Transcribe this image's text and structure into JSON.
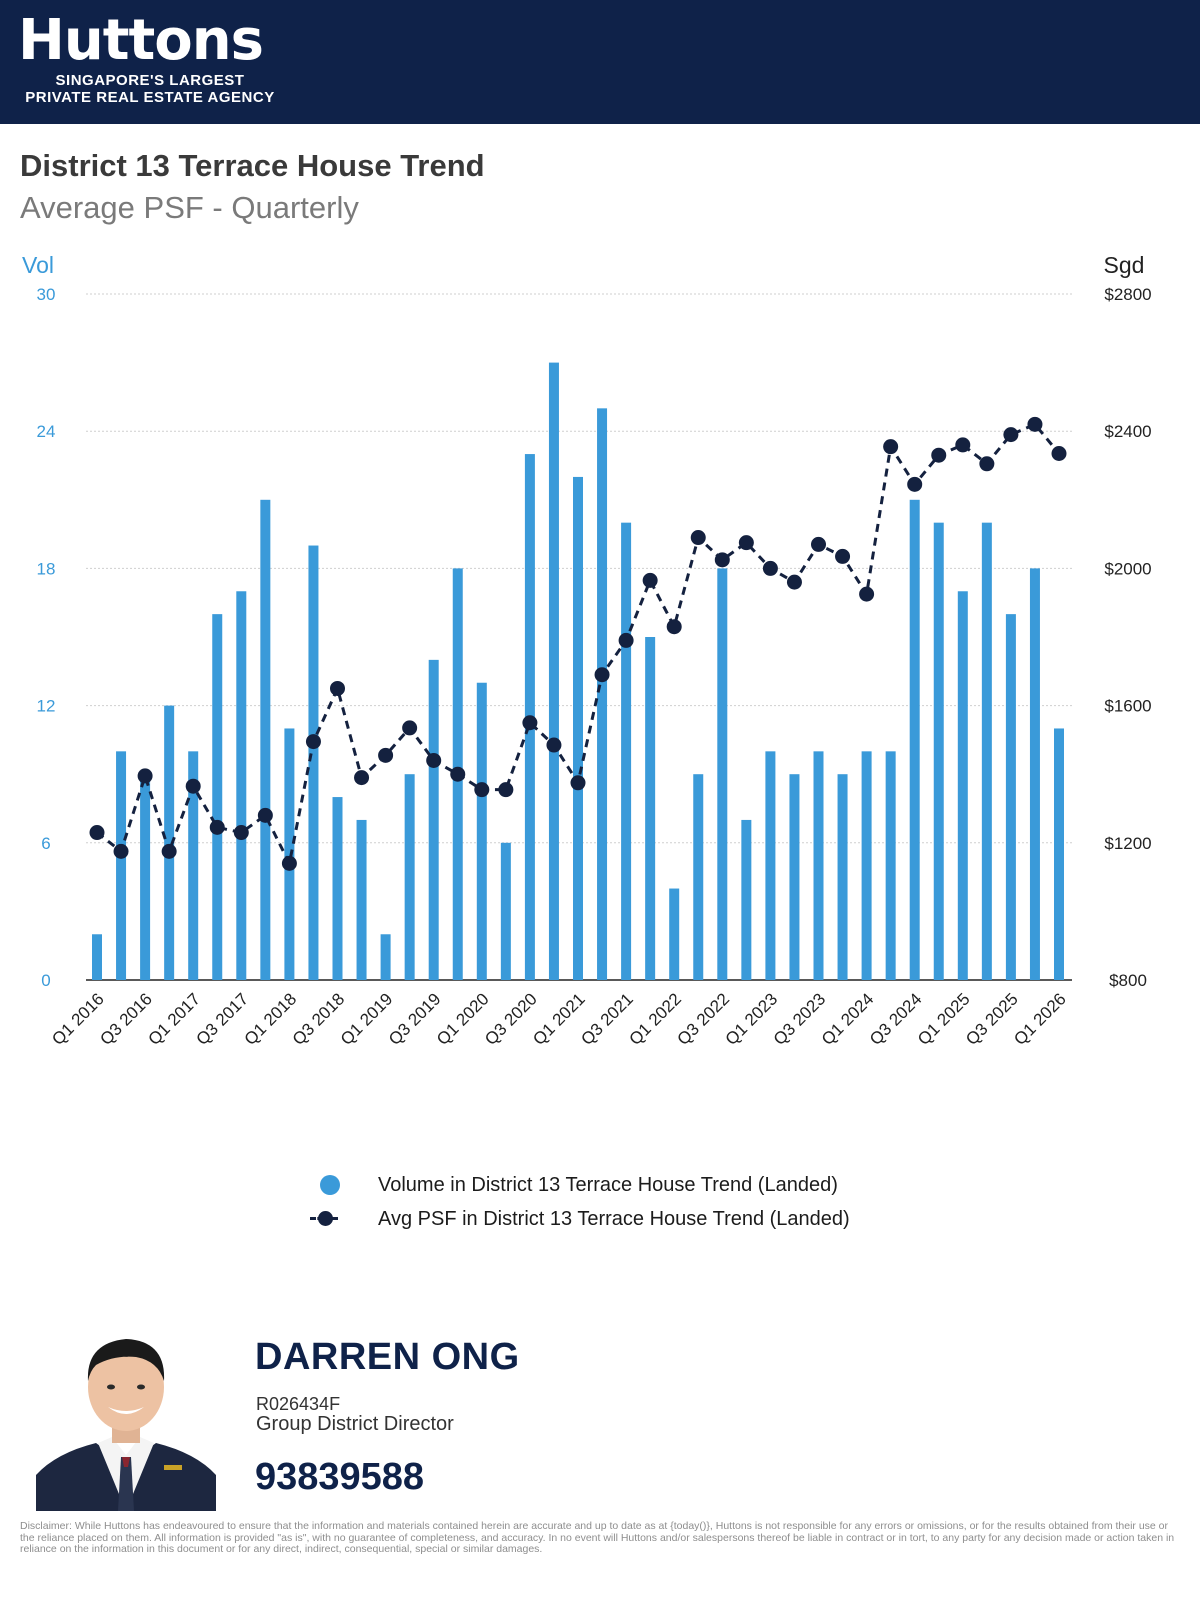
{
  "header": {
    "brand": "Huttons",
    "tagline_1": "SINGAPORE'S LARGEST",
    "tagline_2": "PRIVATE REAL ESTATE AGENCY",
    "background_color": "#0f2249"
  },
  "page": {
    "title": "District 13 Terrace House Trend",
    "subtitle": "Average PSF - Quarterly"
  },
  "chart_data": {
    "type": "bar+line",
    "title": "District 13 Terrace House Trend",
    "subtitle": "Average PSF - Quarterly",
    "left_axis": {
      "label": "Vol",
      "range": [
        0,
        30
      ],
      "ticks": [
        "0",
        "6",
        "12",
        "18",
        "24",
        "30"
      ],
      "color": "#3a9ad9"
    },
    "right_axis": {
      "label": "Sgd",
      "range": [
        800,
        2800
      ],
      "ticks": [
        "$800",
        "$1200",
        "$1600",
        "$2000",
        "$2400",
        "$2800"
      ]
    },
    "grid": true,
    "x_tick_labels": [
      "Q1 2016",
      "Q3 2016",
      "Q1 2017",
      "Q3 2017",
      "Q1 2018",
      "Q3 2018",
      "Q1 2019",
      "Q3 2019",
      "Q1 2020",
      "Q3 2020",
      "Q1 2021",
      "Q3 2021",
      "Q1 2022",
      "Q3 2022",
      "Q1 2023",
      "Q3 2023",
      "Q1 2024",
      "Q3 2024",
      "Q1 2025",
      "Q3 2025",
      "Q1 2026"
    ],
    "categories": [
      "Q1 2016",
      "Q2 2016",
      "Q3 2016",
      "Q4 2016",
      "Q1 2017",
      "Q2 2017",
      "Q3 2017",
      "Q4 2017",
      "Q1 2018",
      "Q2 2018",
      "Q3 2018",
      "Q4 2018",
      "Q1 2019",
      "Q2 2019",
      "Q3 2019",
      "Q4 2019",
      "Q1 2020",
      "Q2 2020",
      "Q3 2020",
      "Q4 2020",
      "Q1 2021",
      "Q2 2021",
      "Q3 2021",
      "Q4 2021",
      "Q1 2022",
      "Q2 2022",
      "Q3 2022",
      "Q4 2022",
      "Q1 2023",
      "Q2 2023",
      "Q3 2023",
      "Q4 2023",
      "Q1 2024",
      "Q2 2024",
      "Q3 2024",
      "Q4 2024",
      "Q1 2025",
      "Q2 2025",
      "Q3 2025",
      "Q4 2025",
      "Q1 2026"
    ],
    "series": [
      {
        "name": "Volume in District 13 Terrace House Trend (Landed)",
        "type": "bar",
        "axis": "left",
        "color": "#3a9ad9",
        "values": [
          2,
          10,
          9,
          12,
          10,
          16,
          17,
          21,
          11,
          19,
          8,
          7,
          2,
          9,
          14,
          18,
          13,
          6,
          23,
          27,
          22,
          25,
          20,
          15,
          4,
          9,
          18,
          7,
          10,
          9,
          10,
          9,
          10,
          10,
          21,
          20,
          17,
          20,
          16,
          18,
          11
        ]
      },
      {
        "name": "Avg PSF in District 13 Terrace House Trend (Landed)",
        "type": "line",
        "style": "dashed",
        "axis": "right",
        "color": "#14213f",
        "values": [
          1230,
          1175,
          1395,
          1175,
          1365,
          1245,
          1230,
          1280,
          1140,
          1495,
          1650,
          1390,
          1455,
          1535,
          1440,
          1400,
          1355,
          1355,
          1550,
          1485,
          1375,
          1690,
          1790,
          1965,
          1830,
          2090,
          2025,
          2075,
          2000,
          1960,
          2070,
          2035,
          1925,
          2355,
          2245,
          2330,
          2360,
          2305,
          2390,
          2420,
          2335
        ]
      }
    ],
    "legend": [
      "Volume in District 13 Terrace House Trend (Landed)",
      "Avg PSF in District 13 Terrace House Trend (Landed)"
    ],
    "legend_position": "bottom"
  },
  "agent": {
    "name": "DARREN ONG",
    "registration": "R026434F",
    "role": "Group District Director",
    "phone": "93839588"
  },
  "disclaimer": "Disclaimer: While Huttons has endeavoured to ensure that the information and materials contained herein are accurate and up to date as at {today()}, Huttons is not responsible for any errors or omissions, or for the results obtained from their use or the reliance placed on them. All information is provided \"as is\", with no guarantee of completeness, and accuracy. In no event will Huttons and/or salespersons thereof be liable in contract or in tort, to any party for any decision made or action taken in reliance on the information in this document or for any direct, indirect, consequential, special or similar damages."
}
